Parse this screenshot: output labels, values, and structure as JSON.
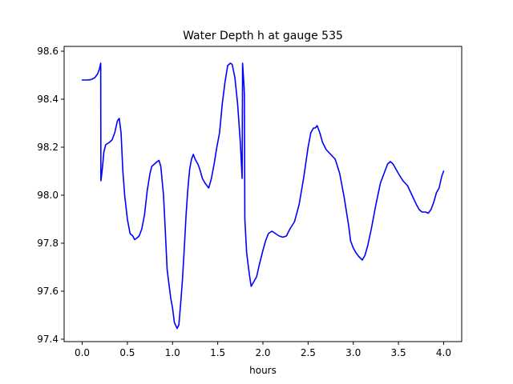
{
  "chart_data": {
    "type": "line",
    "title": "Water Depth h at gauge 535",
    "xlabel": "hours",
    "ylabel": "",
    "xlim": [
      -0.2,
      4.2
    ],
    "ylim": [
      97.39,
      98.62
    ],
    "xticks": [
      0.0,
      0.5,
      1.0,
      1.5,
      2.0,
      2.5,
      3.0,
      3.5,
      4.0
    ],
    "xtick_labels": [
      "0.0",
      "0.5",
      "1.0",
      "1.5",
      "2.0",
      "2.5",
      "3.0",
      "3.5",
      "4.0"
    ],
    "yticks": [
      97.4,
      97.6,
      97.8,
      98.0,
      98.2,
      98.4,
      98.6
    ],
    "ytick_labels": [
      "97.4",
      "97.6",
      "97.8",
      "98.0",
      "98.2",
      "98.4",
      "98.6"
    ],
    "grid": false,
    "series": [
      {
        "color": "#0000ff",
        "points": [
          [
            0.0,
            98.48
          ],
          [
            0.06,
            98.48
          ],
          [
            0.1,
            98.482
          ],
          [
            0.14,
            98.49
          ],
          [
            0.17,
            98.505
          ],
          [
            0.19,
            98.525
          ],
          [
            0.205,
            98.55
          ],
          [
            0.207,
            98.06
          ],
          [
            0.22,
            98.1
          ],
          [
            0.24,
            98.18
          ],
          [
            0.26,
            98.21
          ],
          [
            0.3,
            98.22
          ],
          [
            0.33,
            98.23
          ],
          [
            0.36,
            98.26
          ],
          [
            0.39,
            98.31
          ],
          [
            0.41,
            98.32
          ],
          [
            0.43,
            98.26
          ],
          [
            0.45,
            98.1
          ],
          [
            0.47,
            98.0
          ],
          [
            0.5,
            97.9
          ],
          [
            0.53,
            97.84
          ],
          [
            0.56,
            97.83
          ],
          [
            0.58,
            97.815
          ],
          [
            0.6,
            97.82
          ],
          [
            0.63,
            97.83
          ],
          [
            0.66,
            97.86
          ],
          [
            0.69,
            97.92
          ],
          [
            0.72,
            98.02
          ],
          [
            0.75,
            98.09
          ],
          [
            0.77,
            98.12
          ],
          [
            0.8,
            98.13
          ],
          [
            0.83,
            98.14
          ],
          [
            0.85,
            98.145
          ],
          [
            0.87,
            98.12
          ],
          [
            0.9,
            98.0
          ],
          [
            0.92,
            97.85
          ],
          [
            0.94,
            97.69
          ],
          [
            0.96,
            97.63
          ],
          [
            0.98,
            97.57
          ],
          [
            1.0,
            97.53
          ],
          [
            1.02,
            97.47
          ],
          [
            1.05,
            97.445
          ],
          [
            1.07,
            97.46
          ],
          [
            1.09,
            97.55
          ],
          [
            1.11,
            97.65
          ],
          [
            1.13,
            97.78
          ],
          [
            1.15,
            97.92
          ],
          [
            1.17,
            98.03
          ],
          [
            1.19,
            98.11
          ],
          [
            1.21,
            98.15
          ],
          [
            1.23,
            98.17
          ],
          [
            1.25,
            98.15
          ],
          [
            1.28,
            98.13
          ],
          [
            1.3,
            98.11
          ],
          [
            1.33,
            98.07
          ],
          [
            1.36,
            98.05
          ],
          [
            1.38,
            98.04
          ],
          [
            1.4,
            98.03
          ],
          [
            1.43,
            98.07
          ],
          [
            1.46,
            98.13
          ],
          [
            1.49,
            98.2
          ],
          [
            1.52,
            98.26
          ],
          [
            1.55,
            98.38
          ],
          [
            1.58,
            98.47
          ],
          [
            1.61,
            98.54
          ],
          [
            1.64,
            98.55
          ],
          [
            1.66,
            98.545
          ],
          [
            1.69,
            98.49
          ],
          [
            1.72,
            98.38
          ],
          [
            1.75,
            98.22
          ],
          [
            1.77,
            98.07
          ],
          [
            1.775,
            98.55
          ],
          [
            1.79,
            98.46
          ],
          [
            1.795,
            98.42
          ],
          [
            1.8,
            97.9
          ],
          [
            1.82,
            97.76
          ],
          [
            1.85,
            97.67
          ],
          [
            1.87,
            97.62
          ],
          [
            1.9,
            97.64
          ],
          [
            1.93,
            97.66
          ],
          [
            1.96,
            97.71
          ],
          [
            2.0,
            97.77
          ],
          [
            2.03,
            97.81
          ],
          [
            2.06,
            97.84
          ],
          [
            2.1,
            97.85
          ],
          [
            2.14,
            97.84
          ],
          [
            2.18,
            97.83
          ],
          [
            2.22,
            97.825
          ],
          [
            2.26,
            97.83
          ],
          [
            2.3,
            97.86
          ],
          [
            2.35,
            97.89
          ],
          [
            2.4,
            97.96
          ],
          [
            2.45,
            98.07
          ],
          [
            2.5,
            98.2
          ],
          [
            2.53,
            98.26
          ],
          [
            2.56,
            98.28
          ],
          [
            2.58,
            98.28
          ],
          [
            2.6,
            98.29
          ],
          [
            2.63,
            98.26
          ],
          [
            2.66,
            98.22
          ],
          [
            2.7,
            98.19
          ],
          [
            2.75,
            98.17
          ],
          [
            2.8,
            98.15
          ],
          [
            2.85,
            98.09
          ],
          [
            2.9,
            97.99
          ],
          [
            2.95,
            97.87
          ],
          [
            2.97,
            97.81
          ],
          [
            3.0,
            97.78
          ],
          [
            3.03,
            97.76
          ],
          [
            3.06,
            97.745
          ],
          [
            3.1,
            97.73
          ],
          [
            3.13,
            97.75
          ],
          [
            3.16,
            97.79
          ],
          [
            3.2,
            97.86
          ],
          [
            3.25,
            97.96
          ],
          [
            3.3,
            98.05
          ],
          [
            3.35,
            98.1
          ],
          [
            3.38,
            98.13
          ],
          [
            3.41,
            98.14
          ],
          [
            3.44,
            98.13
          ],
          [
            3.47,
            98.11
          ],
          [
            3.5,
            98.09
          ],
          [
            3.55,
            98.06
          ],
          [
            3.6,
            98.04
          ],
          [
            3.65,
            98.0
          ],
          [
            3.7,
            97.96
          ],
          [
            3.73,
            97.94
          ],
          [
            3.76,
            97.93
          ],
          [
            3.8,
            97.93
          ],
          [
            3.83,
            97.925
          ],
          [
            3.86,
            97.94
          ],
          [
            3.89,
            97.97
          ],
          [
            3.92,
            98.01
          ],
          [
            3.95,
            98.03
          ],
          [
            3.98,
            98.08
          ],
          [
            4.0,
            98.1
          ]
        ]
      }
    ]
  }
}
